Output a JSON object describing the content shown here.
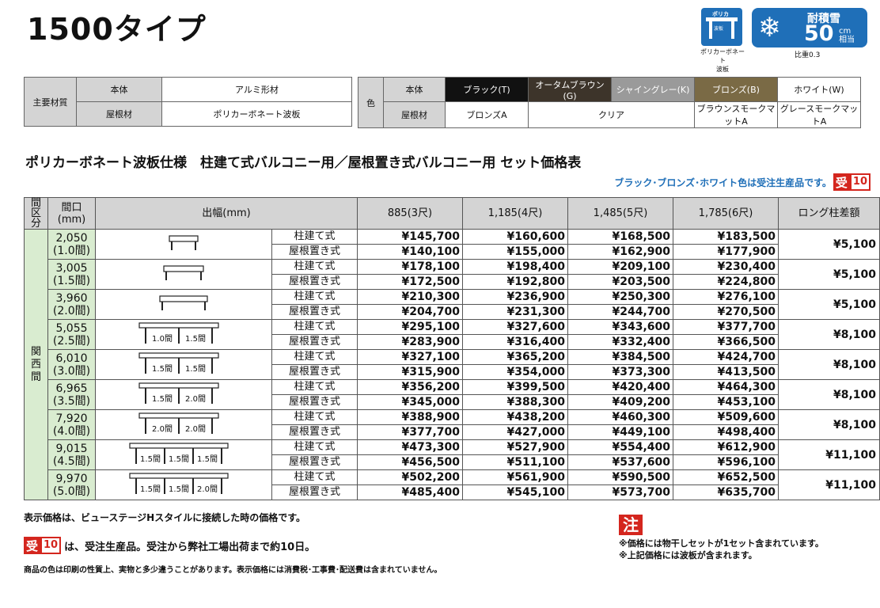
{
  "title": "1500タイプ",
  "icons": {
    "poly_label": "ポリカ",
    "poly_sub": "波板",
    "poly_caption": [
      "ポリカーボネート",
      "波板"
    ],
    "snow_label": "耐積雪",
    "snow_value": "50",
    "snow_unit": "cm相当",
    "snow_caption": "比重0.3"
  },
  "materials": {
    "main_label": "主要材質",
    "rows": [
      {
        "label": "本体",
        "value": "アルミ形材"
      },
      {
        "label": "屋根材",
        "value": "ポリカーボネート波板"
      }
    ]
  },
  "colors": {
    "label": "色",
    "body_label": "本体",
    "roof_label": "屋根材",
    "body": [
      {
        "name": "ブラック(T)",
        "bg": "#111111",
        "fg": "#ffffff"
      },
      {
        "name": "オータムブラウン(G)",
        "bg": "#3d342a",
        "fg": "#ffffff"
      },
      {
        "name": "シャイングレー(K)",
        "bg": "#9a9a9a",
        "fg": "#ffffff"
      },
      {
        "name": "ブロンズ(B)",
        "bg": "#7a6a45",
        "fg": "#ffffff"
      },
      {
        "name": "ホワイト(W)",
        "bg": "#ffffff",
        "fg": "#111111"
      }
    ],
    "roof": [
      {
        "name": "ブロンズA",
        "span": 1
      },
      {
        "name": "クリア",
        "span": 2
      },
      {
        "name": "ブラウンスモークマットA",
        "span": 1
      },
      {
        "name": "グレースモークマットA",
        "span": 1
      }
    ]
  },
  "subtitle": "ポリカーボネート波板仕様　柱建て式バルコニー用／屋根置き式バルコニー用 セット価格表",
  "notice": "ブラック･ブロンズ･ホワイト色は受注生産品です。",
  "badge": {
    "k": "受",
    "n": "10"
  },
  "table": {
    "headers": {
      "kubun": "間区分",
      "span": "間口\n(mm)",
      "depth": "出幅(mm)",
      "cols": [
        "885(3尺)",
        "1,185(4尺)",
        "1,485(5尺)",
        "1,785(6尺)"
      ],
      "diff": "ロング柱差額"
    },
    "kubun_value": "関西間",
    "types": [
      "柱建て式",
      "屋根置き式"
    ],
    "rows": [
      {
        "w": "2,050",
        "ken": "(1.0間)",
        "posts": [],
        "a": [
          "¥145,700",
          "¥160,600",
          "¥168,500",
          "¥183,500"
        ],
        "b": [
          "¥140,100",
          "¥155,000",
          "¥162,900",
          "¥177,900"
        ],
        "diff": "¥5,100"
      },
      {
        "w": "3,005",
        "ken": "(1.5間)",
        "posts": [],
        "a": [
          "¥178,100",
          "¥198,400",
          "¥209,100",
          "¥230,400"
        ],
        "b": [
          "¥172,500",
          "¥192,800",
          "¥203,500",
          "¥224,800"
        ],
        "diff": "¥5,100"
      },
      {
        "w": "3,960",
        "ken": "(2.0間)",
        "posts": [],
        "a": [
          "¥210,300",
          "¥236,900",
          "¥250,300",
          "¥276,100"
        ],
        "b": [
          "¥204,700",
          "¥231,300",
          "¥244,700",
          "¥270,500"
        ],
        "diff": "¥5,100"
      },
      {
        "w": "5,055",
        "ken": "(2.5間)",
        "posts": [
          "1.0間",
          "1.5間"
        ],
        "a": [
          "¥295,100",
          "¥327,600",
          "¥343,600",
          "¥377,700"
        ],
        "b": [
          "¥283,900",
          "¥316,400",
          "¥332,400",
          "¥366,500"
        ],
        "diff": "¥8,100"
      },
      {
        "w": "6,010",
        "ken": "(3.0間)",
        "posts": [
          "1.5間",
          "1.5間"
        ],
        "a": [
          "¥327,100",
          "¥365,200",
          "¥384,500",
          "¥424,700"
        ],
        "b": [
          "¥315,900",
          "¥354,000",
          "¥373,300",
          "¥413,500"
        ],
        "diff": "¥8,100"
      },
      {
        "w": "6,965",
        "ken": "(3.5間)",
        "posts": [
          "1.5間",
          "2.0間"
        ],
        "a": [
          "¥356,200",
          "¥399,500",
          "¥420,400",
          "¥464,300"
        ],
        "b": [
          "¥345,000",
          "¥388,300",
          "¥409,200",
          "¥453,100"
        ],
        "diff": "¥8,100"
      },
      {
        "w": "7,920",
        "ken": "(4.0間)",
        "posts": [
          "2.0間",
          "2.0間"
        ],
        "a": [
          "¥388,900",
          "¥438,200",
          "¥460,300",
          "¥509,600"
        ],
        "b": [
          "¥377,700",
          "¥427,000",
          "¥449,100",
          "¥498,400"
        ],
        "diff": "¥8,100"
      },
      {
        "w": "9,015",
        "ken": "(4.5間)",
        "posts": [
          "1.5間",
          "1.5間",
          "1.5間"
        ],
        "a": [
          "¥473,300",
          "¥527,900",
          "¥554,400",
          "¥612,900"
        ],
        "b": [
          "¥456,500",
          "¥511,100",
          "¥537,600",
          "¥596,100"
        ],
        "diff": "¥11,100"
      },
      {
        "w": "9,970",
        "ken": "(5.0間)",
        "posts": [
          "1.5間",
          "1.5間",
          "2.0間"
        ],
        "a": [
          "¥502,200",
          "¥561,900",
          "¥590,500",
          "¥652,500"
        ],
        "b": [
          "¥485,400",
          "¥545,100",
          "¥573,700",
          "¥635,700"
        ],
        "diff": "¥11,100"
      }
    ]
  },
  "footer": {
    "line1": "表示価格は、ビューステージHスタイルに接続した時の価格です。",
    "line2": "は、受注生産品。受注から弊社工場出荷まで約10日。",
    "line3": "商品の色は印刷の性質上、実物と多少違うことがあります。表示価格には消費税･工事費･配送費は含まれていません。",
    "warn": "注",
    "notes": [
      "※価格には物干しセットが1セット含まれています。",
      "※上記価格には波板が含まれます。"
    ]
  }
}
